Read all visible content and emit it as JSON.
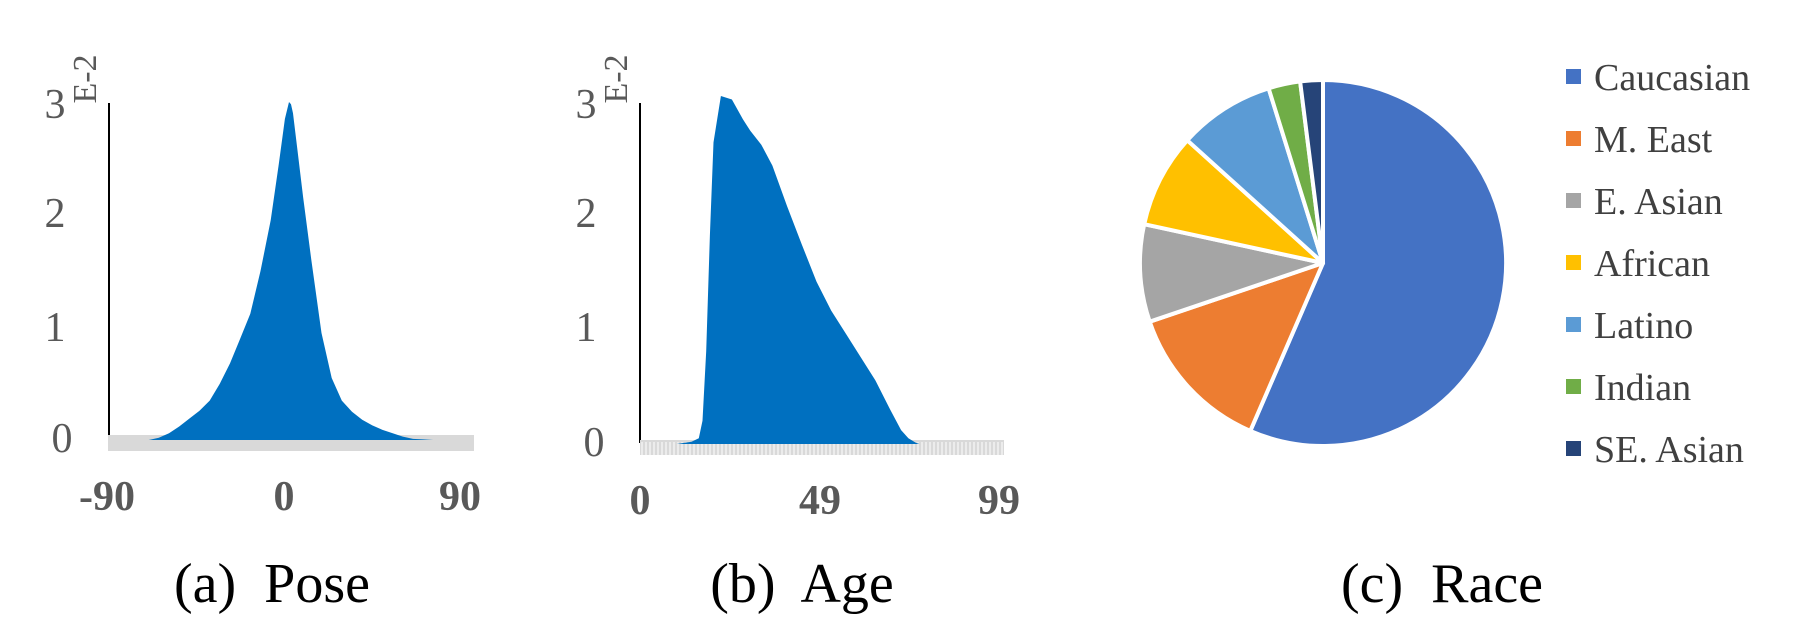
{
  "chart_data": [
    {
      "type": "area",
      "caption": "(a)  Pose",
      "unit_label": "E-2",
      "x_ticks": [
        "-90",
        "0",
        "90"
      ],
      "y_ticks": [
        "0",
        "1",
        "2",
        "3"
      ],
      "xlim": [
        -90,
        90
      ],
      "ylim": [
        0,
        3
      ],
      "color": "#0070C0",
      "baseline_color": "#D9D9D9",
      "x": [
        -90,
        -70,
        -65,
        -60,
        -55,
        -50,
        -45,
        -40,
        -35,
        -30,
        -25,
        -20,
        -15,
        -10,
        -6,
        -3,
        -1,
        0,
        1,
        3,
        6,
        10,
        15,
        20,
        25,
        30,
        35,
        40,
        45,
        50,
        55,
        60,
        65,
        70,
        90
      ],
      "y": [
        0,
        0,
        0.02,
        0.06,
        0.12,
        0.19,
        0.26,
        0.35,
        0.5,
        0.68,
        0.9,
        1.12,
        1.5,
        1.95,
        2.45,
        2.85,
        3.0,
        2.98,
        2.9,
        2.6,
        2.15,
        1.6,
        0.95,
        0.55,
        0.35,
        0.25,
        0.18,
        0.13,
        0.09,
        0.06,
        0.03,
        0.01,
        0.005,
        0,
        0
      ]
    },
    {
      "type": "area",
      "caption": "(b)  Age",
      "unit_label": "E-2",
      "x_ticks": [
        "0",
        "49",
        "99"
      ],
      "y_ticks": [
        "0",
        "1",
        "2",
        "3"
      ],
      "xlim": [
        0,
        99
      ],
      "ylim": [
        0,
        3
      ],
      "color": "#0070C0",
      "baseline_color": "#D9D9D9",
      "x": [
        0,
        10,
        14,
        16,
        17,
        18,
        19,
        20,
        22,
        25,
        28,
        30,
        33,
        36,
        40,
        44,
        48,
        52,
        56,
        60,
        64,
        68,
        71,
        73,
        75,
        76,
        78,
        99
      ],
      "y": [
        0,
        0,
        0.02,
        0.05,
        0.2,
        0.8,
        1.8,
        2.6,
        3.0,
        2.97,
        2.8,
        2.7,
        2.58,
        2.4,
        2.05,
        1.72,
        1.4,
        1.15,
        0.95,
        0.75,
        0.55,
        0.3,
        0.12,
        0.05,
        0.01,
        0,
        0,
        0
      ]
    },
    {
      "type": "pie",
      "caption": "(c)  Race",
      "labels": [
        "Caucasian",
        "M. East",
        "E. Asian",
        "African",
        "Latino",
        "Indian",
        "SE. Asian"
      ],
      "values": [
        56.5,
        13.3,
        8.6,
        8.3,
        8.5,
        2.8,
        2.0
      ],
      "colors": [
        "#4472C4",
        "#ED7D31",
        "#A5A5A5",
        "#FFC000",
        "#5B9BD5",
        "#70AD47",
        "#264478"
      ],
      "legend_position": "right"
    }
  ]
}
